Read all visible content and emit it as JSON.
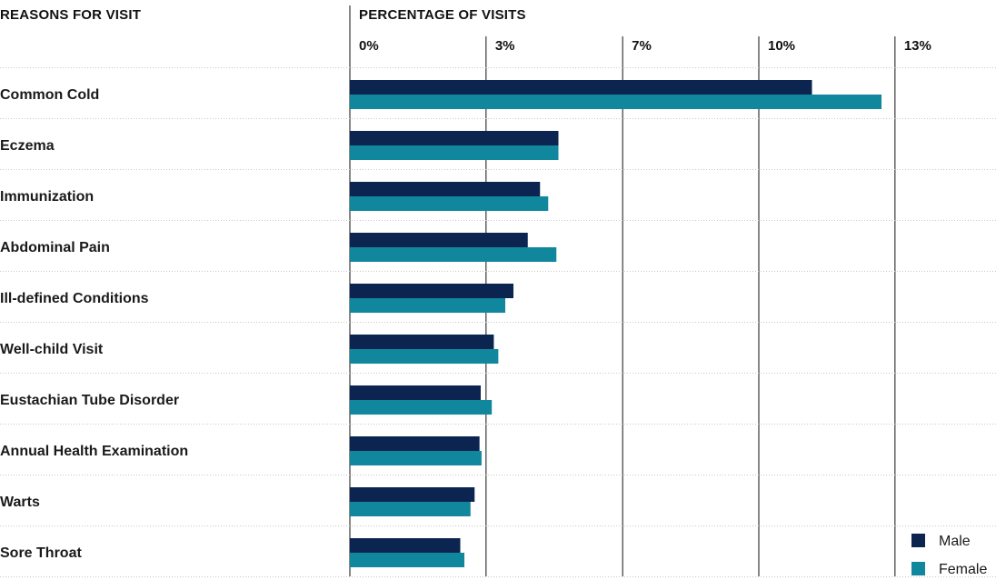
{
  "headers": {
    "left": "REASONS FOR VISIT",
    "right": "PERCENTAGE OF VISITS"
  },
  "legend": {
    "male_label": "Male",
    "female_label": "Female"
  },
  "colors": {
    "male": "#0b2550",
    "female": "#11879e",
    "axis": "#111111",
    "row_divider": "#c8c8c8"
  },
  "chart_data": {
    "type": "bar",
    "orientation": "horizontal",
    "categories": [
      "Common Cold",
      "Eczema",
      "Immunization",
      "Abdominal Pain",
      "Ill-defined Conditions",
      "Well-child Visit",
      "Eustachian Tube Disorder",
      "Annual Health Examination",
      "Warts",
      "Sore Throat"
    ],
    "series": [
      {
        "name": "Male",
        "values": [
          11.3,
          5.1,
          4.65,
          4.35,
          4.0,
          3.52,
          3.2,
          3.17,
          3.05,
          2.7
        ]
      },
      {
        "name": "Female",
        "values": [
          13.0,
          5.1,
          4.85,
          5.05,
          3.8,
          3.63,
          3.47,
          3.22,
          2.95,
          2.8
        ]
      }
    ],
    "x_ticks": [
      0,
      3.33,
      6.67,
      10.0,
      13.33
    ],
    "x_tick_labels": [
      "0%",
      "3%",
      "7%",
      "10%",
      "13%"
    ],
    "xlim": [
      0,
      13.33
    ],
    "xlabel": "PERCENTAGE OF VISITS",
    "ylabel": "REASONS FOR VISIT",
    "legend_position": "bottom-right",
    "grid": "vertical"
  }
}
